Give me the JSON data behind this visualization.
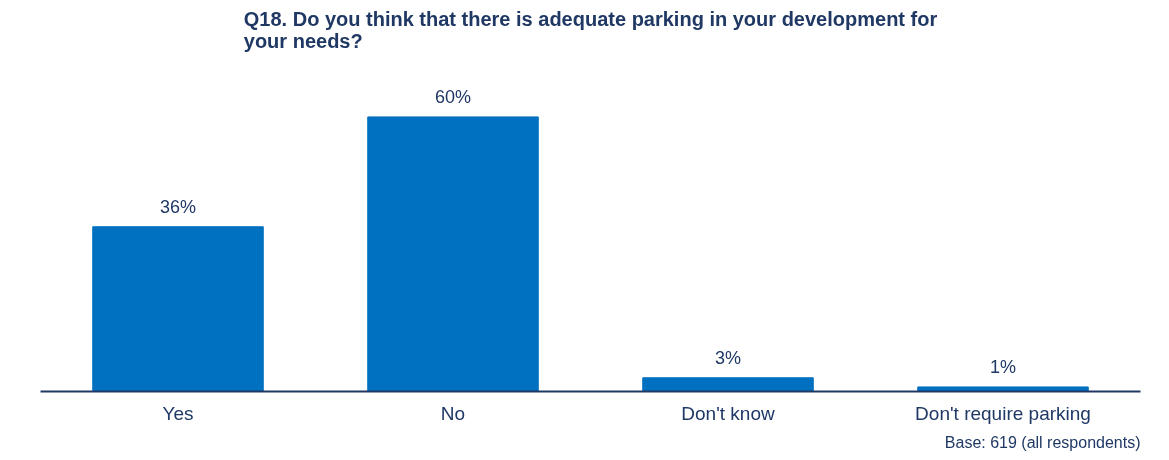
{
  "chart_data": {
    "type": "bar",
    "title": "Q18. Do you think that there is adequate parking in your development for your needs?",
    "categories": [
      "Yes",
      "No",
      "Don't know",
      "Don't require parking"
    ],
    "values": [
      36,
      60,
      3,
      1
    ],
    "value_labels": [
      "36%",
      "60%",
      "3%",
      "1%"
    ],
    "color": "#0070c0",
    "grid": false,
    "annotations": [
      "Base: 619 (all respondents)"
    ]
  }
}
